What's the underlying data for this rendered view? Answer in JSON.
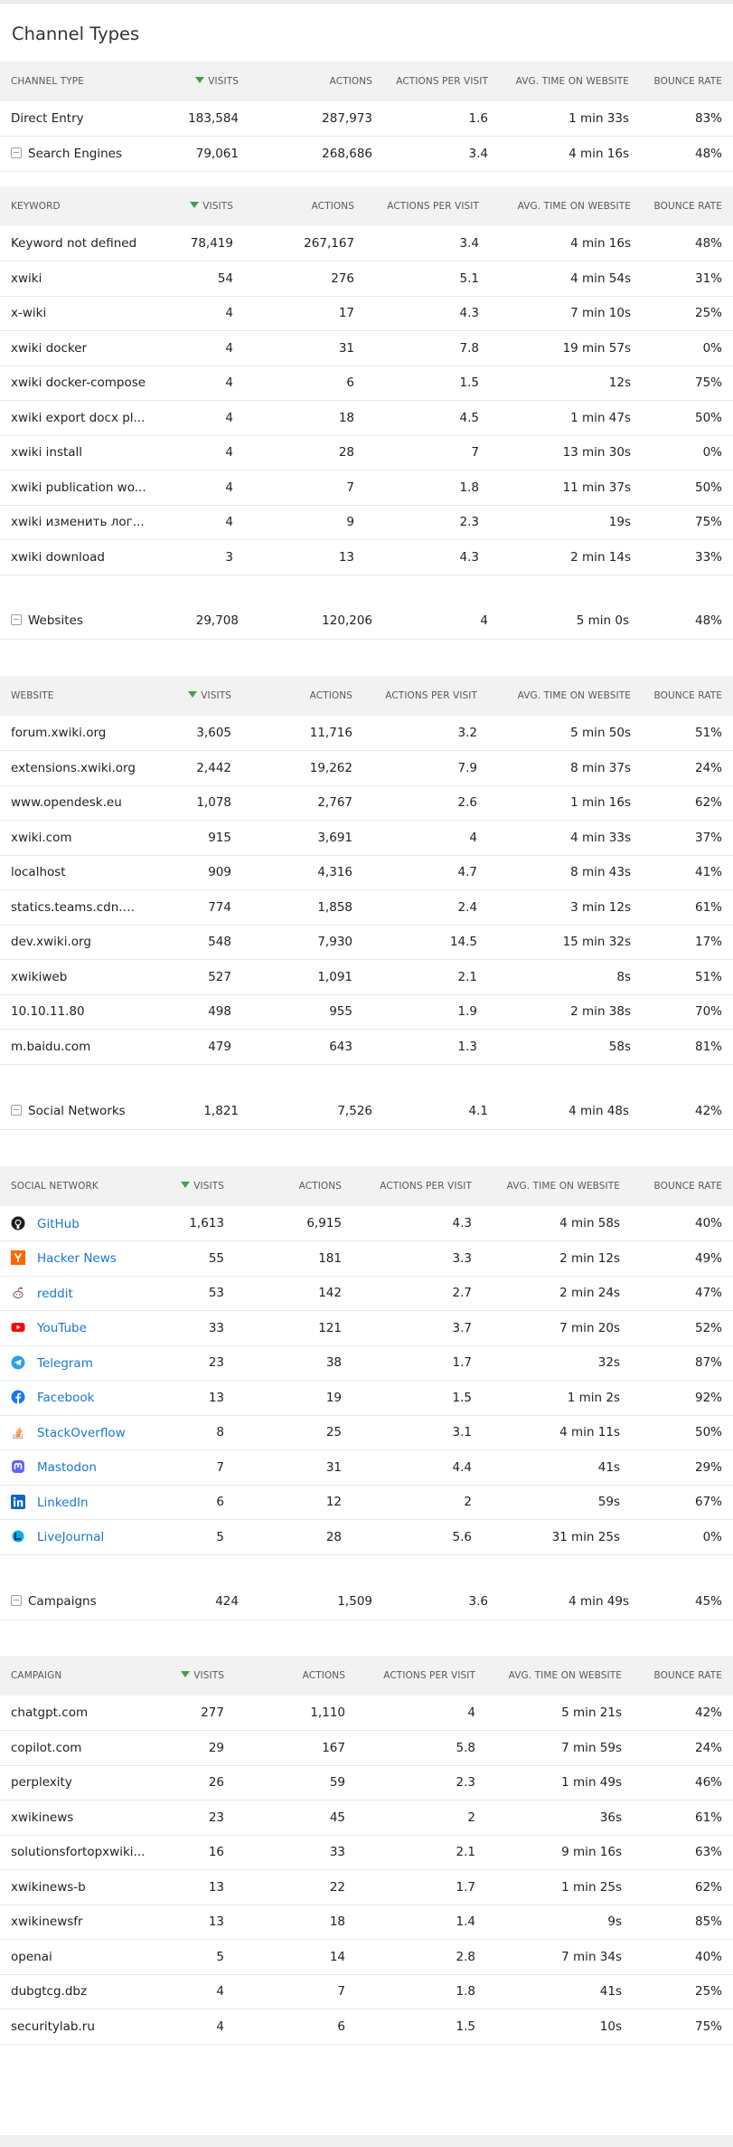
{
  "page": {
    "title": "Channel Types"
  },
  "channels": {
    "headers": [
      "Channel type",
      "Visits",
      "Actions",
      "Actions per visit",
      "Avg. time on website",
      "Bounce rate"
    ],
    "rows": [
      [
        "Direct Entry",
        "183,584",
        "287,973",
        "1.6",
        "1 min 33s",
        "83%"
      ],
      [
        "Search Engines",
        "79,061",
        "268,686",
        "3.4",
        "4 min 16s",
        "48%"
      ]
    ]
  },
  "keywords": {
    "headers": [
      "Keyword",
      "Visits",
      "Actions",
      "Actions per visit",
      "Avg. time on website",
      "Bounce rate"
    ],
    "rows": [
      [
        "Keyword not defined",
        "78,419",
        "267,167",
        "3.4",
        "4 min 16s",
        "48%"
      ],
      [
        "xwiki",
        "54",
        "276",
        "5.1",
        "4 min 54s",
        "31%"
      ],
      [
        "x-wiki",
        "4",
        "17",
        "4.3",
        "7 min 10s",
        "25%"
      ],
      [
        "xwiki docker",
        "4",
        "31",
        "7.8",
        "19 min 57s",
        "0%"
      ],
      [
        "xwiki docker-compose",
        "4",
        "6",
        "1.5",
        "12s",
        "75%"
      ],
      [
        "xwiki export docx pl...",
        "4",
        "18",
        "4.5",
        "1 min 47s",
        "50%"
      ],
      [
        "xwiki install",
        "4",
        "28",
        "7",
        "13 min 30s",
        "0%"
      ],
      [
        "xwiki publication wo...",
        "4",
        "7",
        "1.8",
        "11 min 37s",
        "50%"
      ],
      [
        "xwiki изменить лог...",
        "4",
        "9",
        "2.3",
        "19s",
        "75%"
      ],
      [
        "xwiki download",
        "3",
        "13",
        "4.3",
        "2 min 14s",
        "33%"
      ]
    ]
  },
  "websites_row": [
    "Websites",
    "29,708",
    "120,206",
    "4",
    "5 min 0s",
    "48%"
  ],
  "websites": {
    "headers": [
      "Website",
      "Visits",
      "Actions",
      "Actions per visit",
      "Avg. time on website",
      "Bounce rate"
    ],
    "rows": [
      [
        "forum.xwiki.org",
        "3,605",
        "11,716",
        "3.2",
        "5 min 50s",
        "51%"
      ],
      [
        "extensions.xwiki.org",
        "2,442",
        "19,262",
        "7.9",
        "8 min 37s",
        "24%"
      ],
      [
        "www.opendesk.eu",
        "1,078",
        "2,767",
        "2.6",
        "1 min 16s",
        "62%"
      ],
      [
        "xwiki.com",
        "915",
        "3,691",
        "4",
        "4 min 33s",
        "37%"
      ],
      [
        "localhost",
        "909",
        "4,316",
        "4.7",
        "8 min 43s",
        "41%"
      ],
      [
        "statics.teams.cdn.of...",
        "774",
        "1,858",
        "2.4",
        "3 min 12s",
        "61%"
      ],
      [
        "dev.xwiki.org",
        "548",
        "7,930",
        "14.5",
        "15 min 32s",
        "17%"
      ],
      [
        "xwikiweb",
        "527",
        "1,091",
        "2.1",
        "8s",
        "51%"
      ],
      [
        "10.10.11.80",
        "498",
        "955",
        "1.9",
        "2 min 38s",
        "70%"
      ],
      [
        "m.baidu.com",
        "479",
        "643",
        "1.3",
        "58s",
        "81%"
      ]
    ]
  },
  "social_row": [
    "Social Networks",
    "1,821",
    "7,526",
    "4.1",
    "4 min 48s",
    "42%"
  ],
  "social": {
    "headers": [
      "Social network",
      "Visits",
      "Actions",
      "Actions per visit",
      "Avg. time on website",
      "Bounce rate"
    ],
    "rows": [
      {
        "icon": "github-icon",
        "cells": [
          "GitHub",
          "1,613",
          "6,915",
          "4.3",
          "4 min 58s",
          "40%"
        ]
      },
      {
        "icon": "hacker-news-icon",
        "cells": [
          "Hacker News",
          "55",
          "181",
          "3.3",
          "2 min 12s",
          "49%"
        ]
      },
      {
        "icon": "reddit-icon",
        "cells": [
          "reddit",
          "53",
          "142",
          "2.7",
          "2 min 24s",
          "47%"
        ]
      },
      {
        "icon": "youtube-icon",
        "cells": [
          "YouTube",
          "33",
          "121",
          "3.7",
          "7 min 20s",
          "52%"
        ]
      },
      {
        "icon": "telegram-icon",
        "cells": [
          "Telegram",
          "23",
          "38",
          "1.7",
          "32s",
          "87%"
        ]
      },
      {
        "icon": "facebook-icon",
        "cells": [
          "Facebook",
          "13",
          "19",
          "1.5",
          "1 min 2s",
          "92%"
        ]
      },
      {
        "icon": "stackoverflow-icon",
        "cells": [
          "StackOverflow",
          "8",
          "25",
          "3.1",
          "4 min 11s",
          "50%"
        ]
      },
      {
        "icon": "mastodon-icon",
        "cells": [
          "Mastodon",
          "7",
          "31",
          "4.4",
          "41s",
          "29%"
        ]
      },
      {
        "icon": "linkedin-icon",
        "cells": [
          "LinkedIn",
          "6",
          "12",
          "2",
          "59s",
          "67%"
        ]
      },
      {
        "icon": "livejournal-icon",
        "cells": [
          "LiveJournal",
          "5",
          "28",
          "5.6",
          "31 min 25s",
          "0%"
        ]
      }
    ]
  },
  "campaigns_row": [
    "Campaigns",
    "424",
    "1,509",
    "3.6",
    "4 min 49s",
    "45%"
  ],
  "campaigns": {
    "headers": [
      "Campaign",
      "Visits",
      "Actions",
      "Actions per visit",
      "Avg. time on website",
      "Bounce rate"
    ],
    "rows": [
      [
        "chatgpt.com",
        "277",
        "1,110",
        "4",
        "5 min 21s",
        "42%"
      ],
      [
        "copilot.com",
        "29",
        "167",
        "5.8",
        "7 min 59s",
        "24%"
      ],
      [
        "perplexity",
        "26",
        "59",
        "2.3",
        "1 min 49s",
        "46%"
      ],
      [
        "xwikinews",
        "23",
        "45",
        "2",
        "36s",
        "61%"
      ],
      [
        "solutionsfortopxwiki...",
        "16",
        "33",
        "2.1",
        "9 min 16s",
        "63%"
      ],
      [
        "xwikinews-b",
        "13",
        "22",
        "1.7",
        "1 min 25s",
        "62%"
      ],
      [
        "xwikinewsfr",
        "13",
        "18",
        "1.4",
        "9s",
        "85%"
      ],
      [
        "openai",
        "5",
        "14",
        "2.8",
        "7 min 34s",
        "40%"
      ],
      [
        "dubgtcg.dbz",
        "4",
        "7",
        "1.8",
        "41s",
        "25%"
      ],
      [
        "securitylab.ru",
        "4",
        "6",
        "1.5",
        "10s",
        "75%"
      ]
    ]
  },
  "colors": {
    "sort_arrow": "#43a047",
    "link": "#1976d2",
    "header_bg": "#f2f2f2"
  }
}
